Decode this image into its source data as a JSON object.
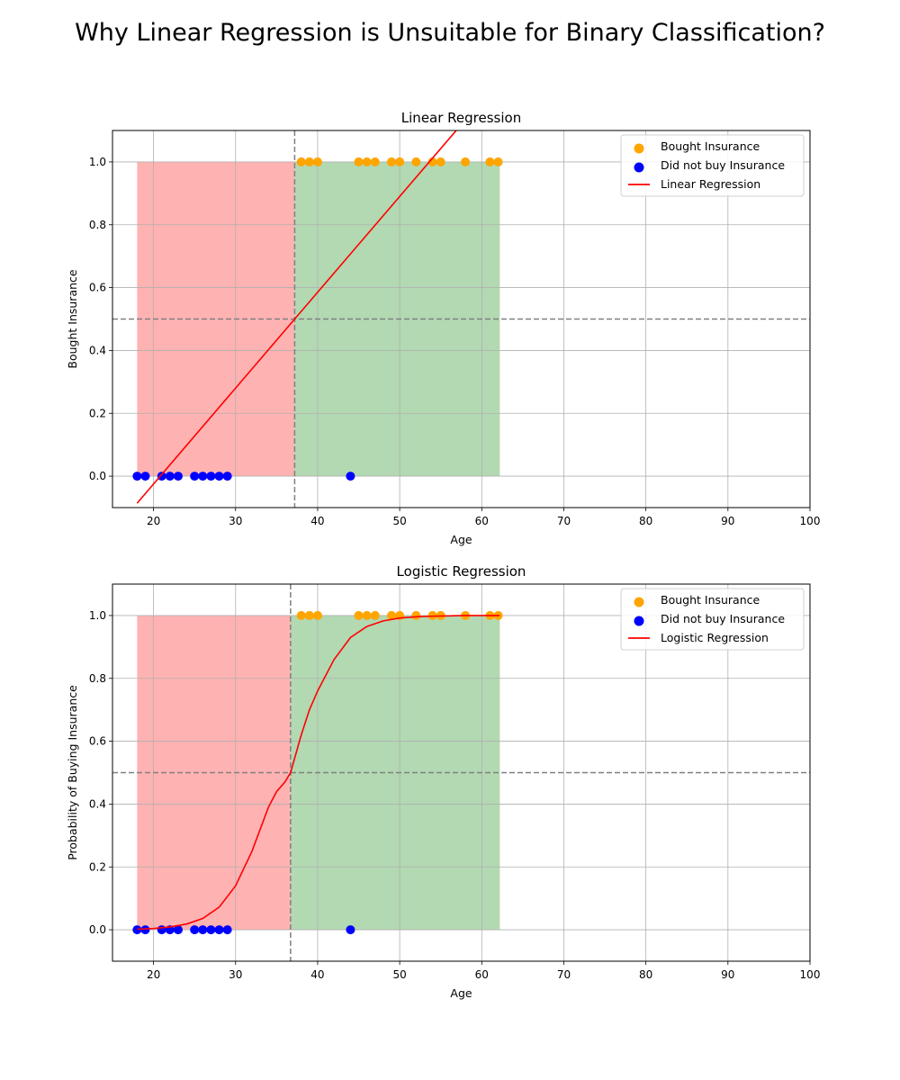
{
  "suptitle": "Why Linear Regression is Unsuitable for Binary Classification?",
  "chart_data": [
    {
      "type": "scatter",
      "title": "Linear Regression",
      "xlabel": "Age",
      "ylabel": "Bought Insurance",
      "xlim": [
        15,
        100
      ],
      "ylim": [
        -0.1,
        1.1
      ],
      "xticks": [
        "20",
        "30",
        "40",
        "50",
        "60",
        "70",
        "80",
        "90",
        "100"
      ],
      "yticks": [
        "0.0",
        "0.2",
        "0.4",
        "0.6",
        "0.8",
        "1.0"
      ],
      "grid": true,
      "legend_position": "top-right",
      "legend": [
        "Bought Insurance",
        "Did not buy Insurance",
        "Linear Regression"
      ],
      "threshold_x": 37.2,
      "threshold_y": 0.5,
      "regions": [
        {
          "x0": 18,
          "x1": 37.2,
          "y0": 0,
          "y1": 1,
          "color": "#ff0000"
        },
        {
          "x0": 37.2,
          "x1": 62.2,
          "y0": 0,
          "y1": 1,
          "color": "#008000"
        }
      ],
      "series": [
        {
          "name": "Bought Insurance",
          "color": "#ffa500",
          "x": [
            38,
            39,
            40,
            45,
            46,
            47,
            49,
            50,
            52,
            54,
            55,
            58,
            61,
            62
          ],
          "y": [
            1,
            1,
            1,
            1,
            1,
            1,
            1,
            1,
            1,
            1,
            1,
            1,
            1,
            1
          ]
        },
        {
          "name": "Did not buy Insurance",
          "color": "#0000ff",
          "x": [
            18,
            19,
            21,
            22,
            23,
            25,
            26,
            27,
            28,
            29,
            44
          ],
          "y": [
            0,
            0,
            0,
            0,
            0,
            0,
            0,
            0,
            0,
            0,
            0
          ]
        },
        {
          "name": "Linear Regression",
          "color": "#ff0000",
          "kind": "line",
          "x": [
            18,
            37.2,
            62.2
          ],
          "y": [
            -0.086,
            0.5,
            1.262
          ]
        }
      ]
    },
    {
      "type": "scatter",
      "title": "Logistic Regression",
      "xlabel": "Age",
      "ylabel": "Probability of Buying Insurance",
      "xlim": [
        15,
        100
      ],
      "ylim": [
        -0.1,
        1.1
      ],
      "xticks": [
        "20",
        "30",
        "40",
        "50",
        "60",
        "70",
        "80",
        "90",
        "100"
      ],
      "yticks": [
        "0.0",
        "0.2",
        "0.4",
        "0.6",
        "0.8",
        "1.0"
      ],
      "grid": true,
      "legend_position": "top-right",
      "legend": [
        "Bought Insurance",
        "Did not buy Insurance",
        "Logistic Regression"
      ],
      "threshold_x": 36.7,
      "threshold_y": 0.5,
      "regions": [
        {
          "x0": 18,
          "x1": 36.7,
          "y0": 0,
          "y1": 1,
          "color": "#ff0000"
        },
        {
          "x0": 36.7,
          "x1": 62.2,
          "y0": 0,
          "y1": 1,
          "color": "#008000"
        }
      ],
      "series": [
        {
          "name": "Bought Insurance",
          "color": "#ffa500",
          "x": [
            38,
            39,
            40,
            45,
            46,
            47,
            49,
            50,
            52,
            54,
            55,
            58,
            61,
            62
          ],
          "y": [
            1,
            1,
            1,
            1,
            1,
            1,
            1,
            1,
            1,
            1,
            1,
            1,
            1,
            1
          ]
        },
        {
          "name": "Did not buy Insurance",
          "color": "#0000ff",
          "x": [
            18,
            19,
            21,
            22,
            23,
            25,
            26,
            27,
            28,
            29,
            44
          ],
          "y": [
            0,
            0,
            0,
            0,
            0,
            0,
            0,
            0,
            0,
            0,
            0
          ]
        },
        {
          "name": "Logistic Regression",
          "color": "#ff0000",
          "kind": "line",
          "x": [
            18,
            20,
            22,
            24,
            26,
            28,
            30,
            32,
            34,
            35,
            36,
            36.7,
            38,
            39,
            40,
            42,
            44,
            46,
            48,
            50,
            52,
            54,
            56,
            58,
            60,
            62.2
          ],
          "y": [
            0.002,
            0.004,
            0.009,
            0.018,
            0.036,
            0.072,
            0.14,
            0.25,
            0.39,
            0.44,
            0.47,
            0.5,
            0.62,
            0.7,
            0.76,
            0.86,
            0.93,
            0.965,
            0.983,
            0.992,
            0.996,
            0.998,
            0.999,
            1.0,
            1.0,
            1.0
          ]
        }
      ]
    }
  ]
}
